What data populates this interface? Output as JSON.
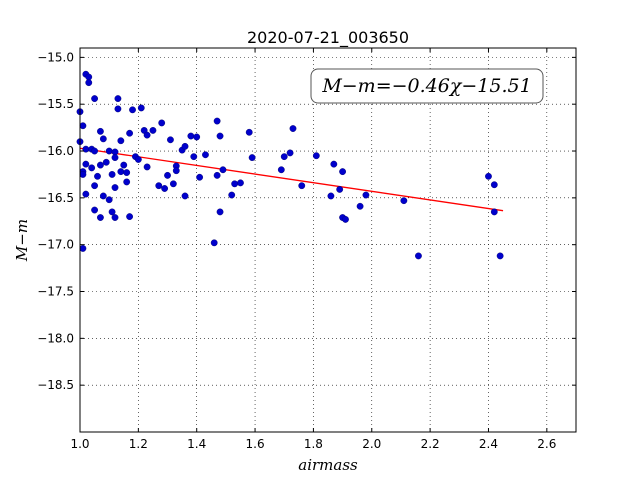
{
  "chart_data": {
    "type": "scatter",
    "title": "2020-07-21_003650",
    "xlabel": "airmass",
    "ylabel": "M−m",
    "xlim": [
      1.0,
      2.7
    ],
    "ylim": [
      -14.9,
      -19.0
    ],
    "x_ticks": [
      1.0,
      1.2,
      1.4,
      1.6,
      1.8,
      2.0,
      2.2,
      2.4,
      2.6
    ],
    "x_tick_labels": [
      "1.0",
      "1.2",
      "1.4",
      "1.6",
      "1.8",
      "2.0",
      "2.2",
      "2.4",
      "2.6"
    ],
    "y_ticks": [
      -15.0,
      -15.5,
      -16.0,
      -16.5,
      -17.0,
      -17.5,
      -18.0,
      -18.5
    ],
    "y_tick_labels": [
      "−15.0",
      "−15.5",
      "−16.0",
      "−16.5",
      "−17.0",
      "−17.5",
      "−18.0",
      "−18.5"
    ],
    "grid": true,
    "annotation": "M−m=−0.46χ−15.51",
    "fit": {
      "slope": -0.46,
      "intercept": -15.51,
      "x_range": [
        1.0,
        2.45
      ],
      "color": "#ff0000"
    },
    "point_color": "#0000cc",
    "series": [
      {
        "points": [
          [
            1.0,
            -15.58
          ],
          [
            1.01,
            -15.73
          ],
          [
            1.0,
            -15.9
          ],
          [
            1.01,
            -16.22
          ],
          [
            1.01,
            -16.25
          ],
          [
            1.01,
            -17.04
          ],
          [
            1.02,
            -15.98
          ],
          [
            1.02,
            -16.14
          ],
          [
            1.02,
            -16.46
          ],
          [
            1.02,
            -15.18
          ],
          [
            1.03,
            -15.21
          ],
          [
            1.03,
            -15.27
          ],
          [
            1.04,
            -15.98
          ],
          [
            1.04,
            -16.18
          ],
          [
            1.05,
            -15.44
          ],
          [
            1.05,
            -16.0
          ],
          [
            1.05,
            -16.37
          ],
          [
            1.05,
            -16.63
          ],
          [
            1.06,
            -16.27
          ],
          [
            1.07,
            -16.71
          ],
          [
            1.07,
            -15.79
          ],
          [
            1.07,
            -16.15
          ],
          [
            1.08,
            -15.87
          ],
          [
            1.08,
            -16.48
          ],
          [
            1.09,
            -16.12
          ],
          [
            1.1,
            -16.0
          ],
          [
            1.1,
            -16.52
          ],
          [
            1.11,
            -16.25
          ],
          [
            1.11,
            -16.65
          ],
          [
            1.12,
            -16.71
          ],
          [
            1.12,
            -16.39
          ],
          [
            1.12,
            -16.01
          ],
          [
            1.12,
            -16.07
          ],
          [
            1.13,
            -15.55
          ],
          [
            1.13,
            -15.44
          ],
          [
            1.14,
            -15.89
          ],
          [
            1.14,
            -16.22
          ],
          [
            1.15,
            -16.15
          ],
          [
            1.16,
            -16.23
          ],
          [
            1.16,
            -16.33
          ],
          [
            1.17,
            -15.81
          ],
          [
            1.17,
            -16.7
          ],
          [
            1.18,
            -15.56
          ],
          [
            1.19,
            -16.06
          ],
          [
            1.2,
            -16.09
          ],
          [
            1.21,
            -15.54
          ],
          [
            1.22,
            -15.78
          ],
          [
            1.23,
            -15.83
          ],
          [
            1.23,
            -16.17
          ],
          [
            1.25,
            -15.78
          ],
          [
            1.27,
            -16.37
          ],
          [
            1.28,
            -15.7
          ],
          [
            1.29,
            -16.4
          ],
          [
            1.3,
            -16.26
          ],
          [
            1.31,
            -15.88
          ],
          [
            1.32,
            -16.35
          ],
          [
            1.33,
            -16.16
          ],
          [
            1.33,
            -16.21
          ],
          [
            1.35,
            -15.99
          ],
          [
            1.36,
            -15.95
          ],
          [
            1.36,
            -16.48
          ],
          [
            1.38,
            -15.84
          ],
          [
            1.39,
            -16.06
          ],
          [
            1.4,
            -15.85
          ],
          [
            1.41,
            -16.28
          ],
          [
            1.43,
            -16.04
          ],
          [
            1.46,
            -16.98
          ],
          [
            1.47,
            -15.68
          ],
          [
            1.47,
            -16.26
          ],
          [
            1.48,
            -16.65
          ],
          [
            1.48,
            -15.84
          ],
          [
            1.49,
            -16.2
          ],
          [
            1.52,
            -16.47
          ],
          [
            1.53,
            -16.35
          ],
          [
            1.55,
            -16.34
          ],
          [
            1.58,
            -15.8
          ],
          [
            1.59,
            -16.07
          ],
          [
            1.69,
            -16.2
          ],
          [
            1.7,
            -16.06
          ],
          [
            1.72,
            -16.02
          ],
          [
            1.73,
            -15.76
          ],
          [
            1.76,
            -16.37
          ],
          [
            1.81,
            -16.05
          ],
          [
            1.86,
            -16.48
          ],
          [
            1.87,
            -16.14
          ],
          [
            1.89,
            -16.41
          ],
          [
            1.9,
            -16.22
          ],
          [
            1.9,
            -16.71
          ],
          [
            1.91,
            -16.73
          ],
          [
            1.96,
            -16.59
          ],
          [
            1.98,
            -16.47
          ],
          [
            2.11,
            -16.53
          ],
          [
            2.16,
            -17.12
          ],
          [
            2.4,
            -16.27
          ],
          [
            2.42,
            -16.36
          ],
          [
            2.42,
            -16.65
          ],
          [
            2.44,
            -17.12
          ]
        ]
      }
    ]
  }
}
